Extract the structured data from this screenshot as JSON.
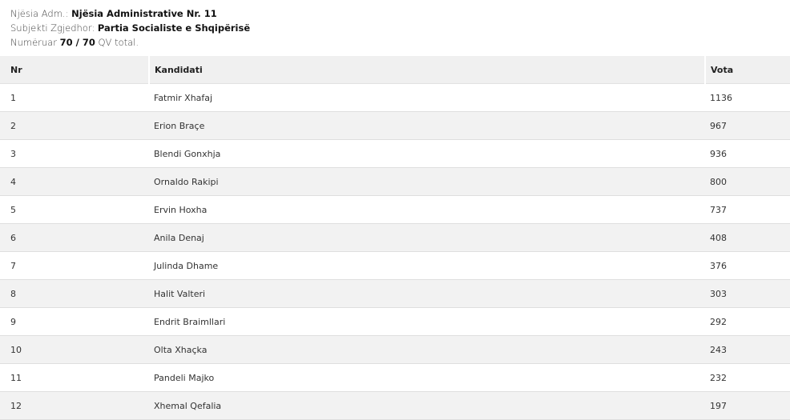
{
  "info": {
    "njesia_label": "Njësia Adm.:",
    "njesia_value": "Njësia Administrative Nr. 11",
    "subjekti_label": "Subjekti Zgjedhor:",
    "subjekti_value": "Partia Socialiste e Shqipërisë",
    "numeruar_label": "Numëruar",
    "numeruar_value": "70 / 70",
    "numeruar_suffix": "QV total."
  },
  "table": {
    "headers": [
      "Nr",
      "Kandidati",
      "Vota"
    ],
    "rows": [
      [
        "1",
        "Fatmir Xhafaj",
        "1136"
      ],
      [
        "2",
        "Erion Braçe",
        "967"
      ],
      [
        "3",
        "Blendi Gonxhja",
        "936"
      ],
      [
        "4",
        "Ornaldo Rakipi",
        "800"
      ],
      [
        "5",
        "Ervin Hoxha",
        "737"
      ],
      [
        "6",
        "Anila Denaj",
        "408"
      ],
      [
        "7",
        "Julinda Dhame",
        "376"
      ],
      [
        "8",
        "Halit Valteri",
        "303"
      ],
      [
        "9",
        "Endrit Braimllari",
        "292"
      ],
      [
        "10",
        "Olta Xhaçka",
        "243"
      ],
      [
        "11",
        "Pandeli Majko",
        "232"
      ],
      [
        "12",
        "Xhemal Qefalia",
        "197"
      ]
    ]
  }
}
